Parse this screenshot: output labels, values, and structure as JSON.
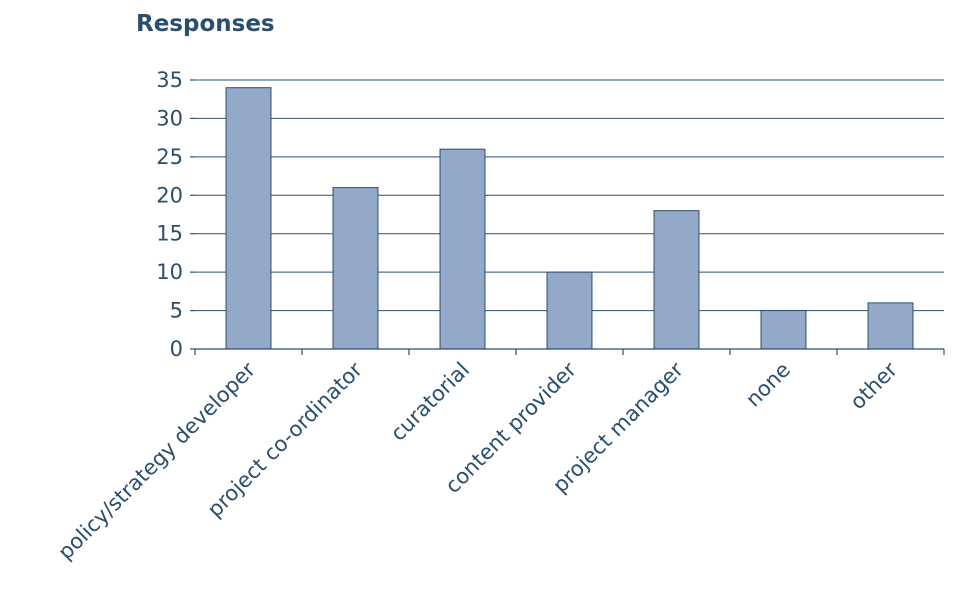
{
  "chart_data": {
    "type": "bar",
    "title": "Responses",
    "categories": [
      "policy/strategy developer",
      "project co-ordinator",
      "curatorial",
      "content provider",
      "project manager",
      "none",
      "other"
    ],
    "values": [
      34,
      21,
      26,
      10,
      18,
      5,
      6
    ],
    "ylim": [
      0,
      35
    ],
    "yticks": [
      0,
      5,
      10,
      15,
      20,
      25,
      30,
      35
    ],
    "xlabel": "",
    "ylabel": "",
    "grid": true,
    "legend": "none",
    "colors": {
      "bar_fill": "#94a8c9",
      "bar_stroke": "#2a4f6e",
      "text": "#2a4f6e",
      "grid": "#2a4f6e"
    }
  }
}
